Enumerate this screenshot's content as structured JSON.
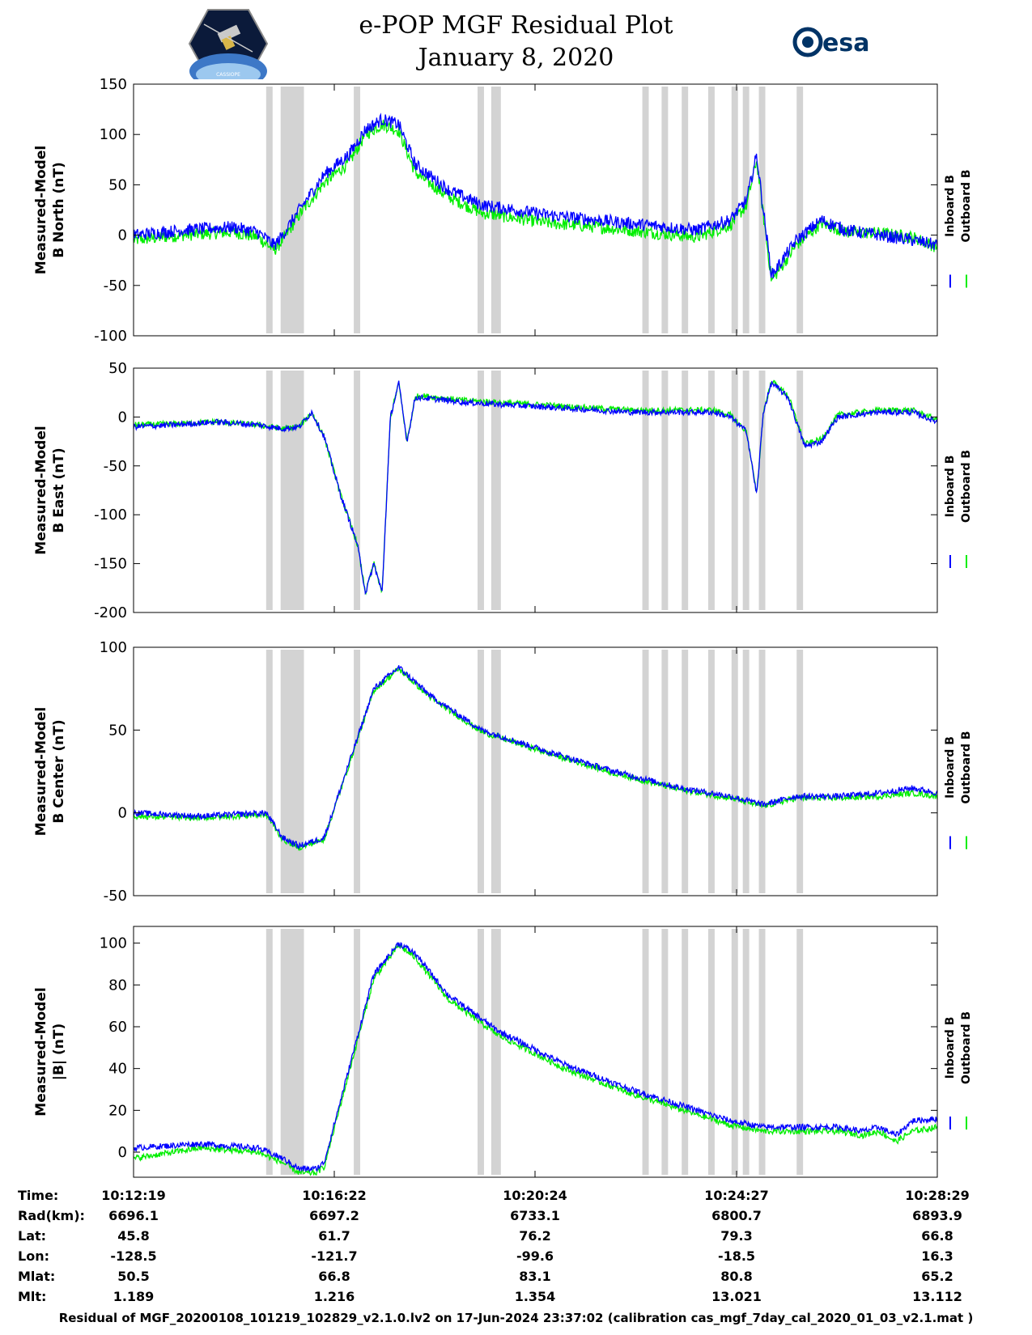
{
  "title": {
    "line1": "e-POP MGF Residual Plot",
    "line2": "January 8, 2020"
  },
  "logos": {
    "left_text": "CASSIOPE",
    "right_text": "esa"
  },
  "colors": {
    "inboard": "#0000ff",
    "outboard": "#00ee00",
    "shade": "#d3d3d3"
  },
  "legend": [
    "Inboard B",
    "Outboard B"
  ],
  "chart_data": [
    {
      "type": "line",
      "ylabel": [
        "Measured-Model",
        "B North (nT)"
      ],
      "ylim": [
        -100,
        150
      ],
      "yticks": [
        -100,
        -50,
        0,
        50,
        100,
        150
      ],
      "xlim": [
        0,
        970
      ],
      "series": [
        {
          "name": "Inboard B",
          "x": [
            0,
            60,
            120,
            150,
            170,
            180,
            200,
            230,
            260,
            280,
            300,
            320,
            340,
            380,
            420,
            500,
            560,
            620,
            680,
            720,
            740,
            752,
            760,
            770,
            800,
            830,
            860,
            900,
            940,
            970
          ],
          "y": [
            0,
            5,
            8,
            3,
            -10,
            0,
            25,
            60,
            80,
            105,
            115,
            110,
            70,
            45,
            30,
            20,
            15,
            10,
            5,
            15,
            35,
            80,
            25,
            -40,
            -5,
            15,
            5,
            0,
            -5,
            -10
          ]
        },
        {
          "name": "Outboard B",
          "x": [
            0,
            60,
            120,
            150,
            170,
            180,
            200,
            230,
            260,
            280,
            300,
            320,
            340,
            380,
            420,
            500,
            560,
            620,
            680,
            720,
            740,
            752,
            760,
            770,
            800,
            830,
            860,
            900,
            940,
            970
          ],
          "y": [
            -5,
            0,
            3,
            -2,
            -15,
            -5,
            20,
            52,
            72,
            100,
            110,
            104,
            62,
            38,
            22,
            12,
            8,
            3,
            -2,
            10,
            30,
            75,
            20,
            -45,
            -10,
            12,
            3,
            2,
            -2,
            -12
          ]
        }
      ]
    },
    {
      "type": "line",
      "ylabel": [
        "Measured-Model",
        "B East (nT)"
      ],
      "ylim": [
        -200,
        50
      ],
      "yticks": [
        -200,
        -150,
        -100,
        -50,
        0,
        50
      ],
      "xlim": [
        0,
        970
      ],
      "series": [
        {
          "name": "Inboard B",
          "x": [
            0,
            50,
            100,
            150,
            180,
            200,
            215,
            230,
            250,
            270,
            280,
            290,
            300,
            310,
            320,
            330,
            340,
            345,
            400,
            500,
            600,
            700,
            720,
            740,
            752,
            760,
            770,
            790,
            810,
            830,
            850,
            900,
            940,
            970
          ],
          "y": [
            -10,
            -8,
            -5,
            -8,
            -12,
            -10,
            5,
            -20,
            -80,
            -130,
            -180,
            -150,
            -180,
            0,
            35,
            -25,
            20,
            20,
            15,
            10,
            5,
            5,
            0,
            -15,
            -80,
            5,
            35,
            20,
            -30,
            -25,
            0,
            5,
            5,
            -5
          ]
        },
        {
          "name": "Outboard B",
          "x": [
            0,
            50,
            100,
            150,
            180,
            200,
            215,
            230,
            250,
            270,
            280,
            290,
            300,
            310,
            320,
            330,
            340,
            345,
            400,
            500,
            600,
            700,
            720,
            740,
            752,
            760,
            770,
            790,
            810,
            830,
            850,
            900,
            940,
            970
          ],
          "y": [
            -8,
            -7,
            -5,
            -8,
            -12,
            -10,
            5,
            -20,
            -80,
            -130,
            -180,
            -150,
            -180,
            0,
            35,
            -25,
            20,
            22,
            17,
            12,
            7,
            7,
            2,
            -15,
            -80,
            5,
            37,
            22,
            -28,
            -23,
            2,
            7,
            7,
            -3
          ]
        }
      ]
    },
    {
      "type": "line",
      "ylabel": [
        "Measured-Model",
        "B Center (nT)"
      ],
      "ylim": [
        -50,
        100
      ],
      "yticks": [
        -50,
        0,
        50,
        100
      ],
      "xlim": [
        0,
        970
      ],
      "series": [
        {
          "name": "Inboard B",
          "x": [
            0,
            80,
            160,
            180,
            200,
            230,
            260,
            290,
            320,
            360,
            420,
            500,
            580,
            660,
            720,
            760,
            800,
            850,
            900,
            940,
            970
          ],
          "y": [
            0,
            -2,
            0,
            -15,
            -20,
            -15,
            30,
            75,
            88,
            70,
            50,
            37,
            25,
            15,
            10,
            5,
            10,
            10,
            12,
            15,
            12
          ]
        },
        {
          "name": "Outboard B",
          "x": [
            0,
            80,
            160,
            180,
            200,
            230,
            260,
            290,
            320,
            360,
            420,
            500,
            580,
            660,
            720,
            760,
            800,
            850,
            900,
            940,
            970
          ],
          "y": [
            -2,
            -3,
            -1,
            -16,
            -21,
            -16,
            29,
            74,
            87,
            69,
            49,
            36,
            24,
            14,
            9,
            4,
            9,
            9,
            10,
            12,
            10
          ]
        }
      ]
    },
    {
      "type": "line",
      "ylabel": [
        "Measured-Model",
        "|B| (nT)"
      ],
      "ylim": [
        -12,
        108
      ],
      "yticks": [
        0,
        20,
        40,
        60,
        80,
        100
      ],
      "xlim": [
        0,
        970
      ],
      "series": [
        {
          "name": "Inboard B",
          "x": [
            0,
            80,
            150,
            180,
            200,
            220,
            230,
            260,
            290,
            320,
            340,
            380,
            440,
            520,
            600,
            680,
            720,
            760,
            800,
            850,
            880,
            900,
            920,
            940,
            970
          ],
          "y": [
            2,
            4,
            2,
            -3,
            -8,
            -8,
            -5,
            40,
            85,
            100,
            95,
            75,
            58,
            42,
            30,
            20,
            15,
            12,
            12,
            12,
            10,
            12,
            8,
            15,
            16
          ]
        },
        {
          "name": "Outboard B",
          "x": [
            0,
            80,
            150,
            180,
            200,
            220,
            230,
            260,
            290,
            320,
            340,
            380,
            440,
            520,
            600,
            680,
            720,
            760,
            800,
            850,
            880,
            900,
            920,
            940,
            970
          ],
          "y": [
            -3,
            2,
            0,
            -5,
            -10,
            -10,
            -7,
            38,
            83,
            99,
            93,
            73,
            56,
            40,
            28,
            18,
            13,
            10,
            10,
            10,
            8,
            10,
            5,
            10,
            12
          ]
        }
      ]
    }
  ],
  "gaps": [
    [
      0.165,
      0.173
    ],
    [
      0.183,
      0.212
    ],
    [
      0.274,
      0.282
    ],
    [
      0.428,
      0.436
    ],
    [
      0.445,
      0.457
    ],
    [
      0.633,
      0.641
    ],
    [
      0.657,
      0.665
    ],
    [
      0.682,
      0.69
    ],
    [
      0.715,
      0.723
    ],
    [
      0.744,
      0.752
    ],
    [
      0.758,
      0.766
    ],
    [
      0.778,
      0.786
    ],
    [
      0.825,
      0.833
    ]
  ],
  "info": {
    "labels": [
      "Time:",
      "Rad(km):",
      "Lat:",
      "Lon:",
      "Mlat:",
      "Mlt:"
    ],
    "columns": [
      [
        "10:12:19",
        "6696.1",
        "45.8",
        "-128.5",
        "50.5",
        "1.189"
      ],
      [
        "10:16:22",
        "6697.2",
        "61.7",
        "-121.7",
        "66.8",
        "1.216"
      ],
      [
        "10:20:24",
        "6733.1",
        "76.2",
        "-99.6",
        "83.1",
        "1.354"
      ],
      [
        "10:24:27",
        "6800.7",
        "79.3",
        "-18.5",
        "80.8",
        "13.021"
      ],
      [
        "10:28:29",
        "6893.9",
        "66.8",
        "16.3",
        "65.2",
        "13.112"
      ]
    ]
  },
  "footer": "Residual of MGF_20200108_101219_102829_v2.1.0.lv2 on 17-Jun-2024 23:37:02 (calibration cas_mgf_7day_cal_2020_01_03_v2.1.mat )"
}
